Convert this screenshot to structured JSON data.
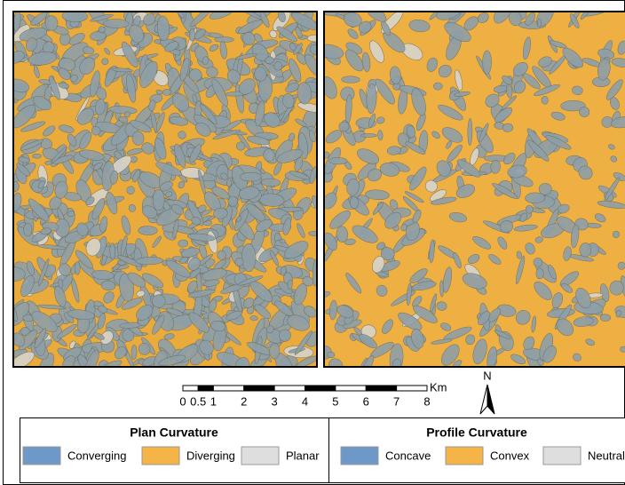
{
  "scale_bar": {
    "ticks": [
      0,
      0.5,
      1,
      2,
      3,
      4,
      5,
      6,
      7,
      8
    ],
    "unit": "Km"
  },
  "north_arrow": "N",
  "legends": [
    {
      "title": "Plan Curvature",
      "items": [
        {
          "label": "Converging",
          "color": "#6d98c8"
        },
        {
          "label": "Diverging",
          "color": "#f4b447"
        },
        {
          "label": "Planar",
          "color": "#dedede"
        }
      ]
    },
    {
      "title": "Profile Curvature",
      "items": [
        {
          "label": "Concave",
          "color": "#6d98c8"
        },
        {
          "label": "Convex",
          "color": "#f4b447"
        },
        {
          "label": "Neutral",
          "color": "#dedede"
        }
      ]
    }
  ]
}
